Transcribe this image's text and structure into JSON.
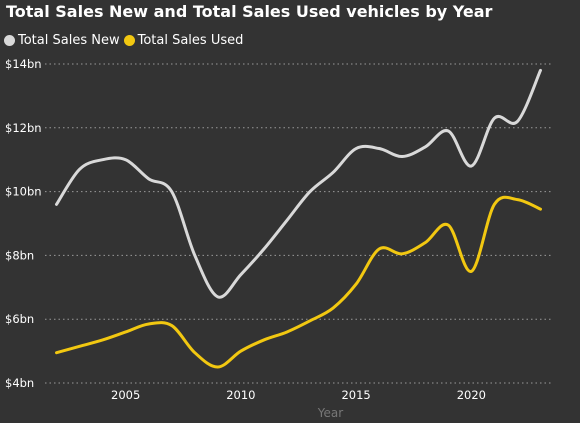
{
  "chart_data": {
    "type": "line",
    "title": "Total Sales New and Total Sales Used vehicles by Year",
    "xlabel": "Year",
    "ylabel": "",
    "xlim": [
      2001.5,
      2023.5
    ],
    "ylim": [
      4,
      14
    ],
    "x_ticks": [
      {
        "value": 2005,
        "label": "2005"
      },
      {
        "value": 2010,
        "label": "2010"
      },
      {
        "value": 2015,
        "label": "2015"
      },
      {
        "value": 2020,
        "label": "2020"
      }
    ],
    "y_ticks": [
      {
        "value": 4,
        "label": "$4bn"
      },
      {
        "value": 6,
        "label": "$6bn"
      },
      {
        "value": 8,
        "label": "$8bn"
      },
      {
        "value": 10,
        "label": "$10bn"
      },
      {
        "value": 12,
        "label": "$12bn"
      },
      {
        "value": 14,
        "label": "$14bn"
      }
    ],
    "grid": "horizontal-dotted",
    "legend_position": "top-left",
    "x": [
      2002,
      2003,
      2004,
      2005,
      2006,
      2007,
      2008,
      2009,
      2010,
      2011,
      2012,
      2013,
      2014,
      2015,
      2016,
      2017,
      2018,
      2019,
      2020,
      2021,
      2022,
      2023
    ],
    "series": [
      {
        "name": "Total Sales New",
        "color": "#d9d9d9",
        "values": [
          9.6,
          10.7,
          11.0,
          11.0,
          10.4,
          10.0,
          8.0,
          6.7,
          7.4,
          8.2,
          9.1,
          10.0,
          10.6,
          11.35,
          11.35,
          11.1,
          11.4,
          11.9,
          10.8,
          12.3,
          12.2,
          13.8
        ]
      },
      {
        "name": "Total Sales Used",
        "color": "#f2c811",
        "values": [
          4.95,
          5.15,
          5.35,
          5.6,
          5.85,
          5.8,
          4.95,
          4.5,
          5.0,
          5.35,
          5.6,
          5.95,
          6.35,
          7.1,
          8.2,
          8.05,
          8.4,
          8.95,
          7.5,
          9.6,
          9.75,
          9.45
        ]
      }
    ]
  }
}
